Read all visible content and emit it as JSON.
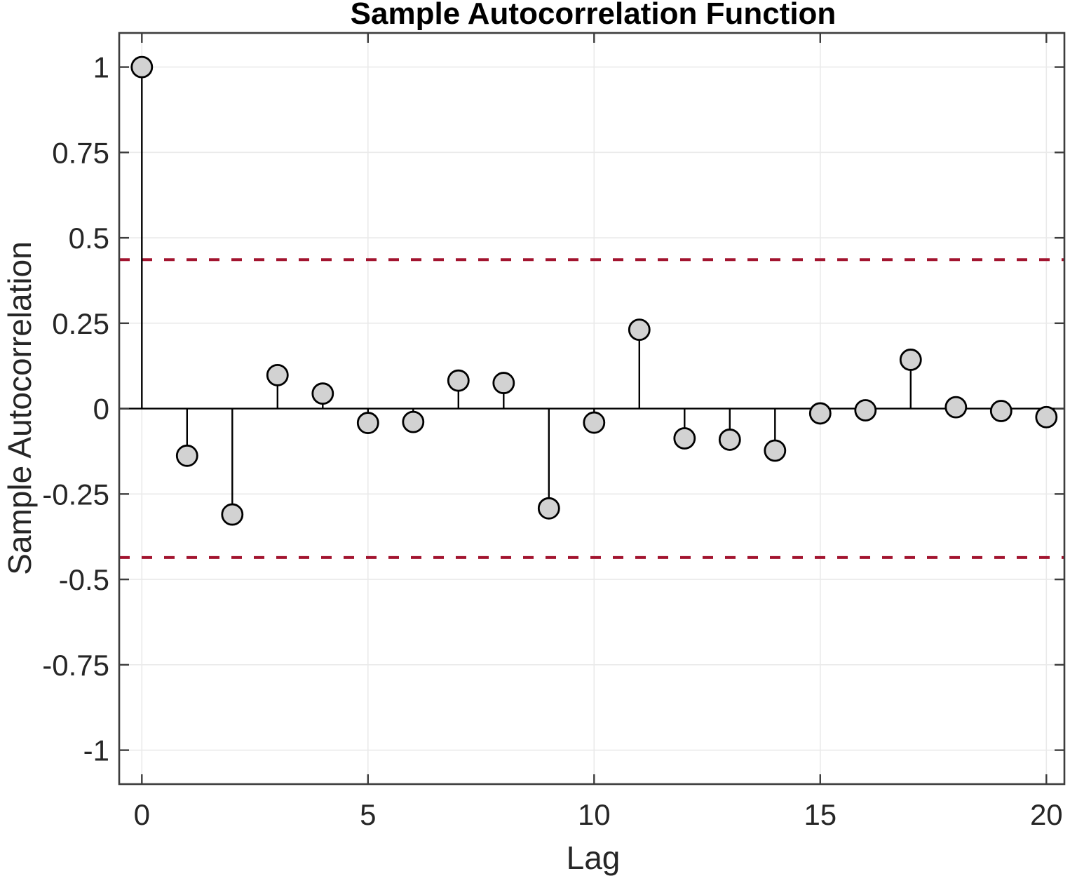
{
  "chart_data": {
    "type": "stem",
    "title": "Sample Autocorrelation Function",
    "xlabel": "Lag",
    "ylabel": "Sample Autocorrelation",
    "x": [
      0,
      1,
      2,
      3,
      4,
      5,
      6,
      7,
      8,
      9,
      10,
      11,
      12,
      13,
      14,
      15,
      16,
      17,
      18,
      19,
      20
    ],
    "values": [
      1.0,
      -0.138,
      -0.31,
      0.098,
      0.044,
      -0.042,
      -0.039,
      0.082,
      0.075,
      -0.292,
      -0.041,
      0.231,
      -0.087,
      -0.091,
      -0.123,
      -0.014,
      -0.005,
      0.143,
      0.004,
      -0.007,
      -0.025
    ],
    "confidence_bounds": {
      "upper": 0.436,
      "lower": -0.436
    },
    "xlim": [
      -0.5,
      20.5
    ],
    "ylim": [
      -1.1,
      1.1
    ],
    "x_ticks": [
      0,
      5,
      10,
      15,
      20
    ],
    "x_tick_labels": [
      "0",
      "5",
      "10",
      "15",
      "20"
    ],
    "y_ticks": [
      1,
      0.75,
      0.5,
      0.25,
      0,
      -0.25,
      -0.5,
      -0.75,
      -1
    ],
    "y_tick_labels": [
      "1",
      "0.75",
      "0.5",
      "0.25",
      "0",
      "-0.25",
      "-0.5",
      "-0.75",
      "-1"
    ],
    "grid": true,
    "legend": null,
    "colors": {
      "background": "#ffffff",
      "stem_line": "#000000",
      "baseline": "#000000",
      "marker_fill": "#d2d2d2",
      "marker_stroke": "#000000",
      "confidence_line": "#a2142f",
      "gridline": "#eaeaea",
      "axis_box": "#3d3d3d",
      "tick_text": "#262626"
    }
  }
}
